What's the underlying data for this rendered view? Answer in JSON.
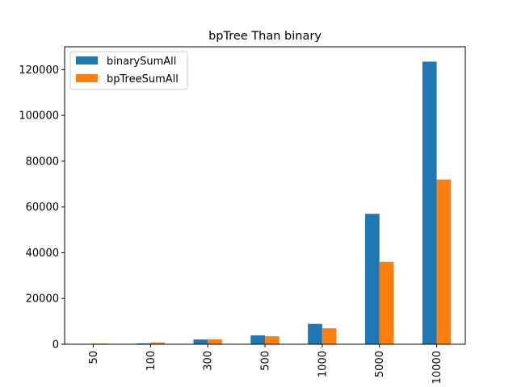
{
  "chart_data": {
    "type": "bar",
    "title": "bpTree Than binary",
    "xlabel": "",
    "ylabel": "",
    "categories": [
      "50",
      "100",
      "300",
      "500",
      "1000",
      "5000",
      "10000"
    ],
    "series": [
      {
        "name": "binarySumAll",
        "color": "#1f77b4",
        "values": [
          100,
          400,
          2100,
          3900,
          8900,
          57000,
          123500
        ]
      },
      {
        "name": "bpTreeSumAll",
        "color": "#ff7f0e",
        "values": [
          300,
          800,
          2200,
          3500,
          7000,
          36000,
          72000
        ]
      }
    ],
    "ylim": [
      0,
      130000
    ],
    "yticks": [
      0,
      20000,
      40000,
      60000,
      80000,
      100000,
      120000
    ],
    "ytick_labels": [
      "0",
      "20000",
      "40000",
      "60000",
      "80000",
      "100000",
      "120000"
    ],
    "xtick_rotation": 90,
    "grid": false,
    "legend_position": "upper-left"
  }
}
